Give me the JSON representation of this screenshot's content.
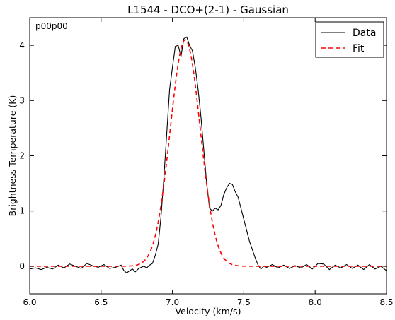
{
  "chart_data": {
    "type": "line",
    "title": "L1544 - DCO+(2-1) - Gaussian",
    "xlabel": "Velocity (km/s)",
    "ylabel": "Brightness Temperature (K)",
    "annotation": "p00p00",
    "xlim": [
      6.0,
      8.5
    ],
    "ylim": [
      -0.5,
      4.5
    ],
    "xticks": [
      6.0,
      6.5,
      7.0,
      7.5,
      8.0,
      8.5
    ],
    "xtick_labels": [
      "6.0",
      "6.5",
      "7.0",
      "7.5",
      "8.0",
      "8.5"
    ],
    "yticks": [
      0,
      1,
      2,
      3,
      4
    ],
    "ytick_labels": [
      "0",
      "1",
      "2",
      "3",
      "4"
    ],
    "grid": false,
    "legend_position": "top-right",
    "series": [
      {
        "name": "Data",
        "style": "solid",
        "color": "#000000",
        "x": [
          6.0,
          6.04,
          6.08,
          6.12,
          6.16,
          6.2,
          6.24,
          6.28,
          6.32,
          6.36,
          6.4,
          6.44,
          6.48,
          6.52,
          6.56,
          6.6,
          6.64,
          6.66,
          6.68,
          6.7,
          6.72,
          6.74,
          6.76,
          6.78,
          6.8,
          6.82,
          6.84,
          6.86,
          6.88,
          6.9,
          6.92,
          6.94,
          6.96,
          6.98,
          7.0,
          7.02,
          7.04,
          7.06,
          7.08,
          7.1,
          7.12,
          7.14,
          7.16,
          7.18,
          7.2,
          7.22,
          7.24,
          7.26,
          7.28,
          7.3,
          7.32,
          7.34,
          7.36,
          7.38,
          7.4,
          7.42,
          7.44,
          7.46,
          7.48,
          7.5,
          7.52,
          7.54,
          7.56,
          7.58,
          7.6,
          7.62,
          7.64,
          7.66,
          7.7,
          7.74,
          7.78,
          7.82,
          7.86,
          7.9,
          7.94,
          7.98,
          8.02,
          8.06,
          8.1,
          8.14,
          8.18,
          8.22,
          8.26,
          8.3,
          8.34,
          8.38,
          8.42,
          8.46,
          8.5
        ],
        "values": [
          -0.05,
          -0.03,
          -0.06,
          -0.02,
          -0.05,
          0.02,
          -0.03,
          0.04,
          0.0,
          -0.04,
          0.05,
          0.01,
          -0.02,
          0.03,
          -0.04,
          -0.02,
          0.02,
          -0.08,
          -0.12,
          -0.08,
          -0.05,
          -0.1,
          -0.05,
          -0.02,
          0.0,
          -0.03,
          0.02,
          0.05,
          0.2,
          0.4,
          0.9,
          1.6,
          2.4,
          3.2,
          3.6,
          3.98,
          4.0,
          3.8,
          4.12,
          4.15,
          4.0,
          3.9,
          3.6,
          3.2,
          2.7,
          2.1,
          1.5,
          1.05,
          1.0,
          1.05,
          1.02,
          1.1,
          1.3,
          1.42,
          1.5,
          1.48,
          1.35,
          1.25,
          1.05,
          0.85,
          0.65,
          0.45,
          0.3,
          0.15,
          0.02,
          -0.05,
          0.0,
          -0.02,
          0.03,
          -0.03,
          0.02,
          -0.04,
          0.01,
          -0.03,
          0.03,
          -0.05,
          0.05,
          0.04,
          -0.06,
          0.02,
          -0.03,
          0.03,
          -0.04,
          0.02,
          -0.06,
          0.03,
          -0.05,
          0.0,
          -0.08
        ]
      },
      {
        "name": "Fit",
        "style": "dashed",
        "color": "#ff0000",
        "gaussian": {
          "amplitude": 4.1,
          "center": 7.09,
          "sigma": 0.105,
          "offset": 0.0
        }
      }
    ]
  }
}
